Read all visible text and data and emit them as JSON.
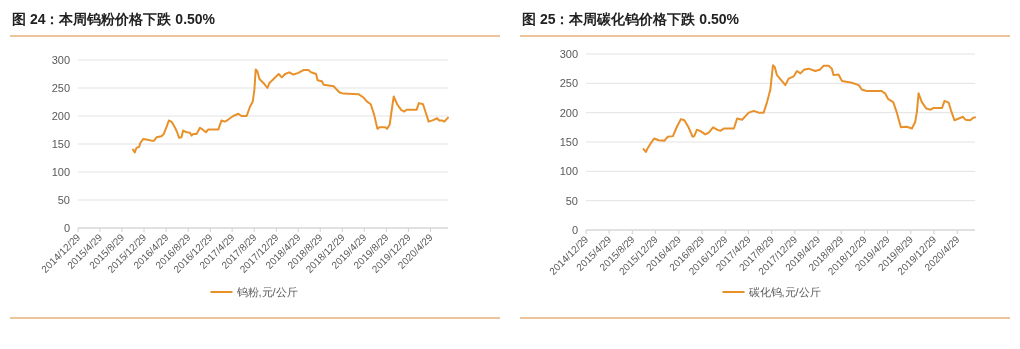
{
  "chart_data": [
    {
      "type": "line",
      "title": "图 24：本周钨粉价格下跌 0.50%",
      "grid": "y",
      "legend": "bottom",
      "x": [
        "2015-10-29",
        "2015-11-08",
        "2015-11-17",
        "2015-12-02",
        "2015-12-09",
        "2015-12-24",
        "2016-01-11",
        "2016-02-08",
        "2016-02-23",
        "2016-03-07",
        "2016-04-03",
        "2016-04-16",
        "2016-05-01",
        "2016-05-14",
        "2016-05-28",
        "2016-06-16",
        "2016-06-29",
        "2016-07-10",
        "2016-07-23",
        "2016-08-01",
        "2016-08-20",
        "2016-09-08",
        "2016-09-17",
        "2016-09-26",
        "2016-10-14",
        "2016-11-02",
        "2016-11-16",
        "2016-12-05",
        "2016-12-18",
        "2017-01-15",
        "2017-02-12",
        "2017-03-01",
        "2017-03-20",
        "2017-04-01",
        "2017-04-17",
        "2017-05-05",
        "2017-06-02",
        "2017-06-20",
        "2017-07-18",
        "2017-08-06",
        "2017-08-21",
        "2017-08-30",
        "2017-09-06",
        "2017-09-15",
        "2017-09-27",
        "2017-10-19",
        "2017-11-10",
        "2017-11-21",
        "2017-12-14",
        "2018-01-11",
        "2018-01-29",
        "2018-02-16",
        "2018-03-11",
        "2018-04-02",
        "2018-04-30",
        "2018-05-28",
        "2018-06-24",
        "2018-07-09",
        "2018-08-06",
        "2018-08-14",
        "2018-09-07",
        "2018-09-16",
        "2018-11-11",
        "2018-11-29",
        "2018-12-14",
        "2019-01-05",
        "2019-03-28",
        "2019-04-25",
        "2019-05-13",
        "2019-06-04",
        "2019-06-23",
        "2019-07-11",
        "2019-07-22",
        "2019-08-24",
        "2019-09-02",
        "2019-09-17",
        "2019-09-25",
        "2019-10-09",
        "2019-10-28",
        "2019-11-19",
        "2019-12-07",
        "2019-12-18",
        "2019-12-31",
        "2020-02-12",
        "2020-02-25",
        "2020-03-19",
        "2020-04-01",
        "2020-04-19",
        "2020-05-17",
        "2020-06-05",
        "2020-06-16",
        "2020-07-02",
        "2020-07-15",
        "2020-08-04"
      ],
      "series": [
        {
          "name": "钨粉,元/公斤",
          "color": "#e8912a",
          "values": [
            140,
            135,
            143,
            145,
            152,
            159,
            158,
            156,
            156,
            162,
            164,
            168,
            180,
            192,
            190,
            180,
            171,
            161,
            162,
            174,
            171,
            170,
            165,
            168,
            168,
            179,
            176,
            171,
            176,
            176,
            176,
            192,
            190,
            192,
            196,
            200,
            204,
            200,
            200,
            217,
            226,
            247,
            283,
            280,
            266,
            259,
            250,
            259,
            266,
            275,
            269,
            275,
            278,
            274,
            277,
            282,
            282,
            278,
            275,
            264,
            262,
            256,
            253,
            247,
            242,
            240,
            239,
            233,
            226,
            221,
            202,
            177,
            180,
            180,
            177,
            185,
            204,
            235,
            221,
            211,
            208,
            211,
            211,
            211,
            223,
            221,
            208,
            190,
            193,
            196,
            192,
            192,
            190,
            197
          ]
        }
      ],
      "xlim": [
        "2014-12-29",
        "2020-08-04"
      ],
      "xticks": [
        {
          "value": "2014-12-29",
          "label": "2014/12/29"
        },
        {
          "value": "2015-04-29",
          "label": "2015/4/29"
        },
        {
          "value": "2015-08-29",
          "label": "2015/8/29"
        },
        {
          "value": "2015-12-29",
          "label": "2015/12/29"
        },
        {
          "value": "2016-04-29",
          "label": "2016/4/29"
        },
        {
          "value": "2016-08-29",
          "label": "2016/8/29"
        },
        {
          "value": "2016-12-29",
          "label": "2016/12/29"
        },
        {
          "value": "2017-04-29",
          "label": "2017/4/29"
        },
        {
          "value": "2017-08-29",
          "label": "2017/8/29"
        },
        {
          "value": "2017-12-29",
          "label": "2017/12/29"
        },
        {
          "value": "2018-04-29",
          "label": "2018/4/29"
        },
        {
          "value": "2018-08-29",
          "label": "2018/8/29"
        },
        {
          "value": "2018-12-29",
          "label": "2018/12/29"
        },
        {
          "value": "2019-04-29",
          "label": "2019/4/29"
        },
        {
          "value": "2019-08-29",
          "label": "2019/8/29"
        },
        {
          "value": "2019-12-29",
          "label": "2019/12/29"
        },
        {
          "value": "2020-04-29",
          "label": "2020/4/29"
        }
      ],
      "ylim": [
        0,
        300
      ],
      "yticks": [
        0,
        50,
        100,
        150,
        200,
        250,
        300
      ]
    },
    {
      "type": "line",
      "title": "图 25：本周碳化钨价格下跌 0.50%",
      "grid": "y",
      "legend": "bottom",
      "x": [
        "2015-10-27",
        "2015-11-08",
        "2015-11-17",
        "2015-12-04",
        "2015-12-22",
        "2016-01-14",
        "2016-02-13",
        "2016-03-02",
        "2016-03-29",
        "2016-04-19",
        "2016-05-10",
        "2016-05-28",
        "2016-06-19",
        "2016-07-10",
        "2016-07-19",
        "2016-08-02",
        "2016-08-23",
        "2016-09-15",
        "2016-10-03",
        "2016-10-26",
        "2016-11-16",
        "2016-12-03",
        "2016-12-21",
        "2017-02-12",
        "2017-03-01",
        "2017-03-27",
        "2017-05-01",
        "2017-05-27",
        "2017-06-22",
        "2017-07-18",
        "2017-08-05",
        "2017-08-22",
        "2017-09-05",
        "2017-09-14",
        "2017-09-26",
        "2017-10-17",
        "2017-11-09",
        "2017-11-26",
        "2017-12-23",
        "2018-01-09",
        "2018-01-27",
        "2018-02-14",
        "2018-03-11",
        "2018-04-15",
        "2018-05-08",
        "2018-05-29",
        "2018-06-24",
        "2018-07-11",
        "2018-07-20",
        "2018-08-15",
        "2018-09-02",
        "2018-10-24",
        "2018-11-29",
        "2018-12-16",
        "2019-01-11",
        "2019-03-29",
        "2019-04-16",
        "2019-05-03",
        "2019-05-29",
        "2019-06-16",
        "2019-07-08",
        "2019-08-08",
        "2019-09-04",
        "2019-09-21",
        "2019-09-30",
        "2019-10-09",
        "2019-10-26",
        "2019-11-19",
        "2019-12-10",
        "2019-12-27",
        "2020-02-09",
        "2020-02-22",
        "2020-03-15",
        "2020-03-27",
        "2020-04-14",
        "2020-05-07",
        "2020-05-29",
        "2020-06-11",
        "2020-07-06",
        "2020-07-20",
        "2020-07-31"
      ],
      "series": [
        {
          "name": "碳化钨,元/公斤",
          "color": "#e8912a",
          "values": [
            138,
            133,
            139,
            148,
            156,
            153,
            152,
            159,
            160,
            176,
            189,
            187,
            175,
            159,
            160,
            171,
            168,
            163,
            166,
            175,
            171,
            169,
            173,
            173,
            190,
            188,
            200,
            203,
            200,
            200,
            218,
            239,
            281,
            278,
            264,
            256,
            247,
            258,
            262,
            271,
            267,
            273,
            275,
            271,
            273,
            280,
            280,
            275,
            264,
            265,
            254,
            251,
            247,
            239,
            237,
            237,
            233,
            223,
            218,
            201,
            175,
            176,
            173,
            184,
            201,
            233,
            218,
            207,
            205,
            208,
            208,
            220,
            217,
            204,
            187,
            190,
            193,
            188,
            187,
            191,
            192
          ]
        }
      ],
      "xlim": [
        "2014-12-29",
        "2020-07-31"
      ],
      "xticks": [
        {
          "value": "2014-12-29",
          "label": "2014/12/29"
        },
        {
          "value": "2015-04-29",
          "label": "2015/4/29"
        },
        {
          "value": "2015-08-29",
          "label": "2015/8/29"
        },
        {
          "value": "2015-12-29",
          "label": "2015/12/29"
        },
        {
          "value": "2016-04-29",
          "label": "2016/4/29"
        },
        {
          "value": "2016-08-29",
          "label": "2016/8/29"
        },
        {
          "value": "2016-12-29",
          "label": "2016/12/29"
        },
        {
          "value": "2017-04-29",
          "label": "2017/4/29"
        },
        {
          "value": "2017-08-29",
          "label": "2017/8/29"
        },
        {
          "value": "2017-12-29",
          "label": "2017/12/29"
        },
        {
          "value": "2018-04-29",
          "label": "2018/4/29"
        },
        {
          "value": "2018-08-29",
          "label": "2018/8/29"
        },
        {
          "value": "2018-12-29",
          "label": "2018/12/29"
        },
        {
          "value": "2019-04-29",
          "label": "2019/4/29"
        },
        {
          "value": "2019-08-29",
          "label": "2019/8/29"
        },
        {
          "value": "2019-12-29",
          "label": "2019/12/29"
        },
        {
          "value": "2020-04-29",
          "label": "2020/4/29"
        }
      ],
      "ylim": [
        0,
        300
      ],
      "yticks": [
        0,
        50,
        100,
        150,
        200,
        250,
        300
      ]
    }
  ]
}
